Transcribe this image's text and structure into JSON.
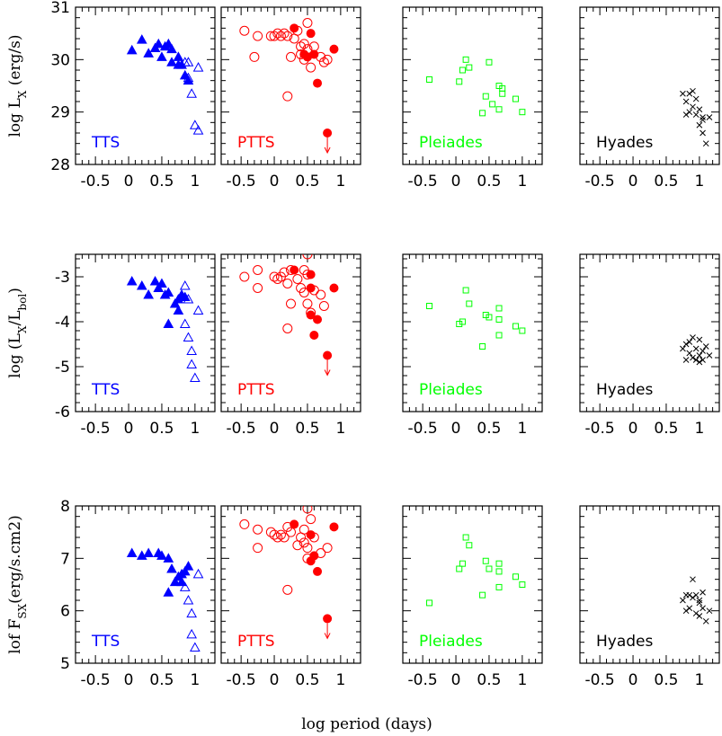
{
  "colors": {
    "TTS": "#0000ff",
    "PTTS": "#ff0000",
    "Pleiades": "#00ff00",
    "Hyades": "#000000"
  },
  "x_axis_title": "log period (days)",
  "x_ticks": [
    "-0.5",
    "0",
    "0.5",
    "1"
  ],
  "chart_data": [
    {
      "type": "scatter",
      "row": "Lx",
      "ylabel": "log L_X (erg/s)",
      "ylim": [
        28,
        31
      ],
      "y_ticks": [
        28,
        29,
        30,
        31
      ],
      "xlim": [
        -0.8,
        1.3
      ],
      "panels": [
        {
          "label": "TTS",
          "marker": "triangle",
          "color": "#0000ff",
          "filled": [
            [
              0.05,
              30.18
            ],
            [
              0.2,
              30.38
            ],
            [
              0.3,
              30.12
            ],
            [
              0.4,
              30.22
            ],
            [
              0.45,
              30.3
            ],
            [
              0.5,
              30.05
            ],
            [
              0.55,
              30.25
            ],
            [
              0.6,
              30.3
            ],
            [
              0.65,
              30.2
            ],
            [
              0.65,
              29.95
            ],
            [
              0.75,
              30.05
            ],
            [
              0.8,
              29.9
            ],
            [
              0.85,
              29.7
            ],
            [
              0.9,
              29.6
            ],
            [
              0.75,
              29.9
            ]
          ],
          "open": [
            [
              0.85,
              29.95
            ],
            [
              0.9,
              29.95
            ],
            [
              0.9,
              29.65
            ],
            [
              0.95,
              29.35
            ],
            [
              1.05,
              29.85
            ],
            [
              1.0,
              28.75
            ],
            [
              1.05,
              28.65
            ]
          ]
        },
        {
          "label": "PTTS",
          "marker": "circle",
          "color": "#ff0000",
          "filled": [
            [
              0.3,
              30.6
            ],
            [
              0.55,
              30.5
            ],
            [
              0.9,
              30.2
            ],
            [
              0.45,
              30.1
            ],
            [
              0.5,
              30.05
            ],
            [
              0.6,
              30.1
            ],
            [
              0.65,
              29.55
            ],
            [
              0.8,
              28.6
            ]
          ],
          "open": [
            [
              -0.45,
              30.55
            ],
            [
              -0.25,
              30.45
            ],
            [
              -0.3,
              30.05
            ],
            [
              -0.05,
              30.45
            ],
            [
              0.0,
              30.45
            ],
            [
              0.05,
              30.5
            ],
            [
              0.1,
              30.45
            ],
            [
              0.15,
              30.5
            ],
            [
              0.2,
              30.45
            ],
            [
              0.25,
              30.05
            ],
            [
              0.3,
              30.4
            ],
            [
              0.35,
              30.55
            ],
            [
              0.4,
              30.1
            ],
            [
              0.4,
              30.25
            ],
            [
              0.45,
              30.3
            ],
            [
              0.5,
              30.7
            ],
            [
              0.5,
              30.2
            ],
            [
              0.55,
              29.85
            ],
            [
              0.6,
              30.25
            ],
            [
              0.7,
              30.05
            ],
            [
              0.75,
              29.95
            ],
            [
              0.8,
              30.0
            ],
            [
              0.2,
              29.3
            ],
            [
              0.45,
              30.0
            ]
          ],
          "arrow_x": 0.8
        },
        {
          "label": "Pleiades",
          "marker": "square",
          "color": "#00ff00",
          "filled": [],
          "open": [
            [
              -0.4,
              29.62
            ],
            [
              0.05,
              29.58
            ],
            [
              0.1,
              29.8
            ],
            [
              0.15,
              30.0
            ],
            [
              0.2,
              29.85
            ],
            [
              0.4,
              28.98
            ],
            [
              0.45,
              29.3
            ],
            [
              0.5,
              29.95
            ],
            [
              0.55,
              29.15
            ],
            [
              0.65,
              29.5
            ],
            [
              0.7,
              29.45
            ],
            [
              0.65,
              29.05
            ],
            [
              0.7,
              29.35
            ],
            [
              0.9,
              29.25
            ],
            [
              1.0,
              29.0
            ]
          ],
          "arrow_x": null
        },
        {
          "label": "Hyades",
          "marker": "cross",
          "color": "#000000",
          "filled": [],
          "open": [
            [
              0.75,
              29.35
            ],
            [
              0.8,
              29.2
            ],
            [
              0.8,
              28.95
            ],
            [
              0.85,
              29.0
            ],
            [
              0.9,
              29.4
            ],
            [
              0.9,
              29.1
            ],
            [
              0.95,
              28.95
            ],
            [
              0.95,
              29.25
            ],
            [
              1.0,
              28.75
            ],
            [
              1.0,
              29.05
            ],
            [
              1.05,
              28.9
            ],
            [
              1.05,
              28.6
            ],
            [
              1.1,
              28.4
            ],
            [
              1.15,
              28.9
            ],
            [
              0.85,
              29.35
            ],
            [
              1.05,
              28.85
            ]
          ],
          "arrow_x": null
        }
      ]
    },
    {
      "type": "scatter",
      "row": "LxLbol",
      "ylabel": "log (L_X/L_bol)",
      "ylim": [
        -6,
        -2.5
      ],
      "y_ticks": [
        -6,
        -5,
        -4,
        -3
      ],
      "xlim": [
        -0.8,
        1.3
      ],
      "panels": [
        {
          "label": "TTS",
          "marker": "triangle",
          "color": "#0000ff",
          "filled": [
            [
              0.05,
              -3.1
            ],
            [
              0.2,
              -3.2
            ],
            [
              0.3,
              -3.4
            ],
            [
              0.4,
              -3.1
            ],
            [
              0.45,
              -3.25
            ],
            [
              0.5,
              -3.15
            ],
            [
              0.55,
              -3.4
            ],
            [
              0.6,
              -3.35
            ],
            [
              0.6,
              -4.05
            ],
            [
              0.7,
              -3.6
            ],
            [
              0.75,
              -3.5
            ],
            [
              0.8,
              -3.4
            ],
            [
              0.85,
              -3.45
            ],
            [
              0.75,
              -3.75
            ]
          ],
          "open": [
            [
              0.85,
              -3.2
            ],
            [
              0.9,
              -3.5
            ],
            [
              0.85,
              -4.05
            ],
            [
              0.9,
              -4.35
            ],
            [
              0.95,
              -4.65
            ],
            [
              0.95,
              -4.95
            ],
            [
              1.05,
              -3.75
            ],
            [
              1.0,
              -5.25
            ]
          ]
        },
        {
          "label": "PTTS",
          "marker": "circle",
          "color": "#ff0000",
          "filled": [
            [
              0.3,
              -2.85
            ],
            [
              0.55,
              -2.95
            ],
            [
              0.9,
              -3.25
            ],
            [
              0.55,
              -3.25
            ],
            [
              0.55,
              -3.85
            ],
            [
              0.65,
              -3.95
            ],
            [
              0.6,
              -4.3
            ],
            [
              0.8,
              -4.75
            ]
          ],
          "open": [
            [
              -0.45,
              -3.0
            ],
            [
              -0.25,
              -2.85
            ],
            [
              -0.25,
              -3.25
            ],
            [
              0.0,
              -3.0
            ],
            [
              0.05,
              -3.05
            ],
            [
              0.1,
              -3.0
            ],
            [
              0.15,
              -2.9
            ],
            [
              0.2,
              -3.15
            ],
            [
              0.25,
              -2.85
            ],
            [
              0.25,
              -3.6
            ],
            [
              0.2,
              -4.15
            ],
            [
              0.35,
              -3.05
            ],
            [
              0.4,
              -3.25
            ],
            [
              0.45,
              -3.35
            ],
            [
              0.5,
              -2.95
            ],
            [
              0.5,
              -2.5
            ],
            [
              0.5,
              -3.6
            ],
            [
              0.55,
              -3.8
            ],
            [
              0.6,
              -3.3
            ],
            [
              0.7,
              -3.4
            ],
            [
              0.75,
              -3.65
            ],
            [
              0.45,
              -2.85
            ]
          ],
          "arrow_x": 0.8
        },
        {
          "label": "Pleiades",
          "marker": "square",
          "color": "#00ff00",
          "filled": [],
          "open": [
            [
              -0.4,
              -3.65
            ],
            [
              0.05,
              -4.05
            ],
            [
              0.1,
              -4.0
            ],
            [
              0.15,
              -3.3
            ],
            [
              0.2,
              -3.6
            ],
            [
              0.4,
              -4.55
            ],
            [
              0.45,
              -3.85
            ],
            [
              0.5,
              -3.9
            ],
            [
              0.65,
              -3.7
            ],
            [
              0.65,
              -3.95
            ],
            [
              0.65,
              -4.3
            ],
            [
              0.9,
              -4.1
            ],
            [
              1.0,
              -4.2
            ]
          ],
          "arrow_x": null
        },
        {
          "label": "Hyades",
          "marker": "cross",
          "color": "#000000",
          "filled": [],
          "open": [
            [
              0.75,
              -4.6
            ],
            [
              0.8,
              -4.5
            ],
            [
              0.8,
              -4.85
            ],
            [
              0.85,
              -4.7
            ],
            [
              0.9,
              -4.35
            ],
            [
              0.9,
              -4.8
            ],
            [
              0.95,
              -4.6
            ],
            [
              0.95,
              -4.85
            ],
            [
              1.0,
              -4.4
            ],
            [
              1.0,
              -4.75
            ],
            [
              1.05,
              -4.85
            ],
            [
              1.05,
              -4.65
            ],
            [
              1.1,
              -4.55
            ],
            [
              1.15,
              -4.75
            ],
            [
              0.85,
              -4.45
            ],
            [
              1.0,
              -4.9
            ]
          ],
          "arrow_x": null
        }
      ]
    },
    {
      "type": "scatter",
      "row": "Fsx",
      "ylabel": "lof F_SX(erg/s.cm2)",
      "ylim": [
        5,
        8
      ],
      "y_ticks": [
        5,
        6,
        7,
        8
      ],
      "xlim": [
        -0.8,
        1.3
      ],
      "panels": [
        {
          "label": "TTS",
          "marker": "triangle",
          "color": "#0000ff",
          "filled": [
            [
              0.05,
              7.1
            ],
            [
              0.2,
              7.05
            ],
            [
              0.3,
              7.1
            ],
            [
              0.45,
              7.1
            ],
            [
              0.5,
              7.05
            ],
            [
              0.6,
              7.0
            ],
            [
              0.65,
              6.8
            ],
            [
              0.6,
              6.35
            ],
            [
              0.7,
              6.55
            ],
            [
              0.75,
              6.65
            ],
            [
              0.8,
              6.7
            ],
            [
              0.85,
              6.75
            ],
            [
              0.8,
              6.55
            ],
            [
              0.9,
              6.85
            ]
          ],
          "open": [
            [
              0.85,
              6.45
            ],
            [
              0.9,
              6.2
            ],
            [
              0.95,
              5.95
            ],
            [
              0.95,
              5.55
            ],
            [
              1.05,
              6.7
            ],
            [
              1.0,
              5.3
            ]
          ]
        },
        {
          "label": "PTTS",
          "marker": "circle",
          "color": "#ff0000",
          "filled": [
            [
              0.3,
              7.65
            ],
            [
              0.55,
              7.45
            ],
            [
              0.9,
              7.6
            ],
            [
              0.55,
              6.95
            ],
            [
              0.6,
              7.05
            ],
            [
              0.65,
              6.75
            ],
            [
              0.8,
              5.85
            ]
          ],
          "open": [
            [
              -0.45,
              7.65
            ],
            [
              -0.25,
              7.55
            ],
            [
              -0.25,
              7.2
            ],
            [
              -0.05,
              7.5
            ],
            [
              0.0,
              7.45
            ],
            [
              0.05,
              7.4
            ],
            [
              0.1,
              7.45
            ],
            [
              0.15,
              7.4
            ],
            [
              0.2,
              7.6
            ],
            [
              0.25,
              7.5
            ],
            [
              0.2,
              6.4
            ],
            [
              0.35,
              7.25
            ],
            [
              0.4,
              7.4
            ],
            [
              0.45,
              7.55
            ],
            [
              0.45,
              7.3
            ],
            [
              0.5,
              7.95
            ],
            [
              0.5,
              7.2
            ],
            [
              0.5,
              7.0
            ],
            [
              0.55,
              7.75
            ],
            [
              0.6,
              7.4
            ],
            [
              0.7,
              7.1
            ],
            [
              0.8,
              7.2
            ]
          ],
          "arrow_x": 0.8
        },
        {
          "label": "Pleiades",
          "marker": "square",
          "color": "#00ff00",
          "filled": [],
          "open": [
            [
              -0.4,
              6.15
            ],
            [
              0.05,
              6.8
            ],
            [
              0.1,
              6.9
            ],
            [
              0.15,
              7.4
            ],
            [
              0.2,
              7.25
            ],
            [
              0.4,
              6.3
            ],
            [
              0.45,
              6.95
            ],
            [
              0.5,
              6.8
            ],
            [
              0.65,
              6.9
            ],
            [
              0.65,
              6.75
            ],
            [
              0.65,
              6.45
            ],
            [
              0.9,
              6.65
            ],
            [
              1.0,
              6.5
            ]
          ],
          "arrow_x": null
        },
        {
          "label": "Hyades",
          "marker": "cross",
          "color": "#000000",
          "filled": [],
          "open": [
            [
              0.75,
              6.2
            ],
            [
              0.8,
              6.3
            ],
            [
              0.8,
              6.0
            ],
            [
              0.85,
              6.05
            ],
            [
              0.9,
              6.6
            ],
            [
              0.9,
              6.25
            ],
            [
              0.95,
              6.3
            ],
            [
              0.95,
              5.95
            ],
            [
              1.0,
              6.2
            ],
            [
              1.0,
              5.9
            ],
            [
              1.05,
              6.35
            ],
            [
              1.05,
              6.05
            ],
            [
              1.1,
              5.8
            ],
            [
              1.15,
              6.0
            ],
            [
              0.85,
              6.3
            ],
            [
              1.0,
              6.15
            ]
          ],
          "arrow_x": null
        }
      ]
    }
  ]
}
